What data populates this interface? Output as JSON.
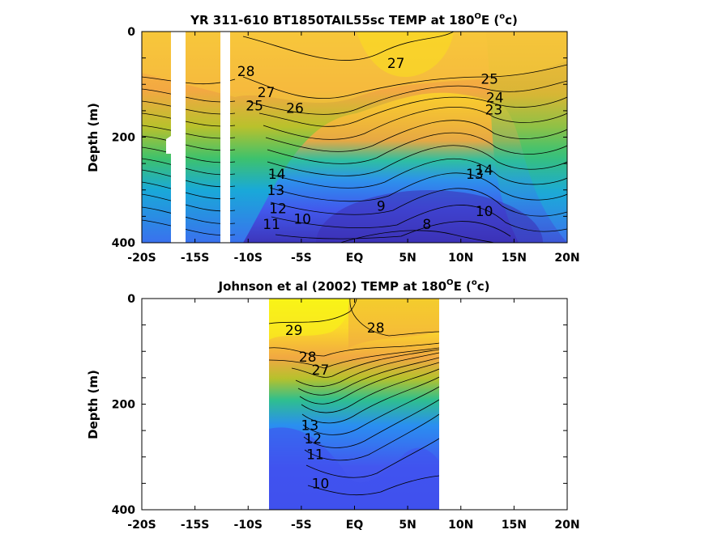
{
  "chart_data": [
    {
      "type": "heatmap",
      "subtype": "filled-contour",
      "title_main": "YR 311-610 BT1850TAIL55sc TEMP at 180",
      "title_deg": "O",
      "title_e": "E (",
      "title_unit_sup": "o",
      "title_unit": "c)",
      "ylabel": "Depth (m)",
      "xlabel": "",
      "xlim": [
        -20,
        20
      ],
      "ylim": [
        400,
        0
      ],
      "x_ticks": [
        -20,
        -15,
        -10,
        -5,
        0,
        5,
        10,
        15,
        20
      ],
      "x_tick_labels": [
        "-20S",
        "-15S",
        "-10S",
        "-5S",
        "EQ",
        "5N",
        "10N",
        "15N",
        "20N"
      ],
      "y_ticks": [
        0,
        200,
        400
      ],
      "y_tick_labels": [
        "0",
        "200",
        "400"
      ],
      "colormap": [
        "#3e26a8",
        "#4253f0",
        "#2d8ff0",
        "#15b2d2",
        "#2fc486",
        "#95c534",
        "#f0b93a",
        "#fad923",
        "#f9fb15"
      ],
      "color_range_c": [
        8,
        29
      ],
      "data_gaps_lat": [
        [
          -17.3,
          -16.1
        ],
        [
          -12.2,
          -11.1
        ]
      ],
      "data_extent_lat": [
        -20,
        20
      ],
      "contour_labels": [
        {
          "text": "28",
          "lat": -10.2,
          "depth": 75
        },
        {
          "text": "27",
          "lat": -8.3,
          "depth": 115
        },
        {
          "text": "26",
          "lat": -5.6,
          "depth": 145
        },
        {
          "text": "25",
          "lat": -9.4,
          "depth": 140
        },
        {
          "text": "27",
          "lat": 3.9,
          "depth": 60
        },
        {
          "text": "25",
          "lat": 12.7,
          "depth": 90
        },
        {
          "text": "24",
          "lat": 13.2,
          "depth": 125
        },
        {
          "text": "23",
          "lat": 13.1,
          "depth": 148
        },
        {
          "text": "9",
          "lat": 2.5,
          "depth": 330
        },
        {
          "text": "8",
          "lat": 6.8,
          "depth": 365
        },
        {
          "text": "10",
          "lat": -4.9,
          "depth": 355
        },
        {
          "text": "11",
          "lat": -7.8,
          "depth": 365
        },
        {
          "text": "12",
          "lat": -7.2,
          "depth": 335
        },
        {
          "text": "13",
          "lat": -7.4,
          "depth": 300
        },
        {
          "text": "14",
          "lat": -7.3,
          "depth": 270
        },
        {
          "text": "10",
          "lat": 12.2,
          "depth": 340
        },
        {
          "text": "13",
          "lat": 11.3,
          "depth": 270
        },
        {
          "text": "14",
          "lat": 12.2,
          "depth": 262
        }
      ]
    },
    {
      "type": "heatmap",
      "subtype": "filled-contour",
      "title_main": "Johnson et al (2002) TEMP at 180",
      "title_deg": "O",
      "title_e": "E (",
      "title_unit_sup": "o",
      "title_unit": "c)",
      "ylabel": "Depth (m)",
      "xlabel": "",
      "xlim": [
        -20,
        20
      ],
      "ylim": [
        400,
        0
      ],
      "x_ticks": [
        -20,
        -15,
        -10,
        -5,
        0,
        5,
        10,
        15,
        20
      ],
      "x_tick_labels": [
        "-20S",
        "-15S",
        "-10S",
        "-5S",
        "EQ",
        "5N",
        "10N",
        "15N",
        "20N"
      ],
      "y_ticks": [
        0,
        200,
        400
      ],
      "y_tick_labels": [
        "0",
        "200",
        "400"
      ],
      "color_range_c": [
        8,
        29
      ],
      "data_extent_lat": [
        -8,
        8
      ],
      "contour_labels": [
        {
          "text": "29",
          "lat": -5.7,
          "depth": 60
        },
        {
          "text": "28",
          "lat": 2.0,
          "depth": 55
        },
        {
          "text": "28",
          "lat": -4.4,
          "depth": 110
        },
        {
          "text": "27",
          "lat": -3.2,
          "depth": 135
        },
        {
          "text": "11",
          "lat": -3.7,
          "depth": 295
        },
        {
          "text": "12",
          "lat": -3.9,
          "depth": 265
        },
        {
          "text": "13",
          "lat": -4.2,
          "depth": 240
        },
        {
          "text": "10",
          "lat": -3.2,
          "depth": 350
        }
      ]
    }
  ]
}
